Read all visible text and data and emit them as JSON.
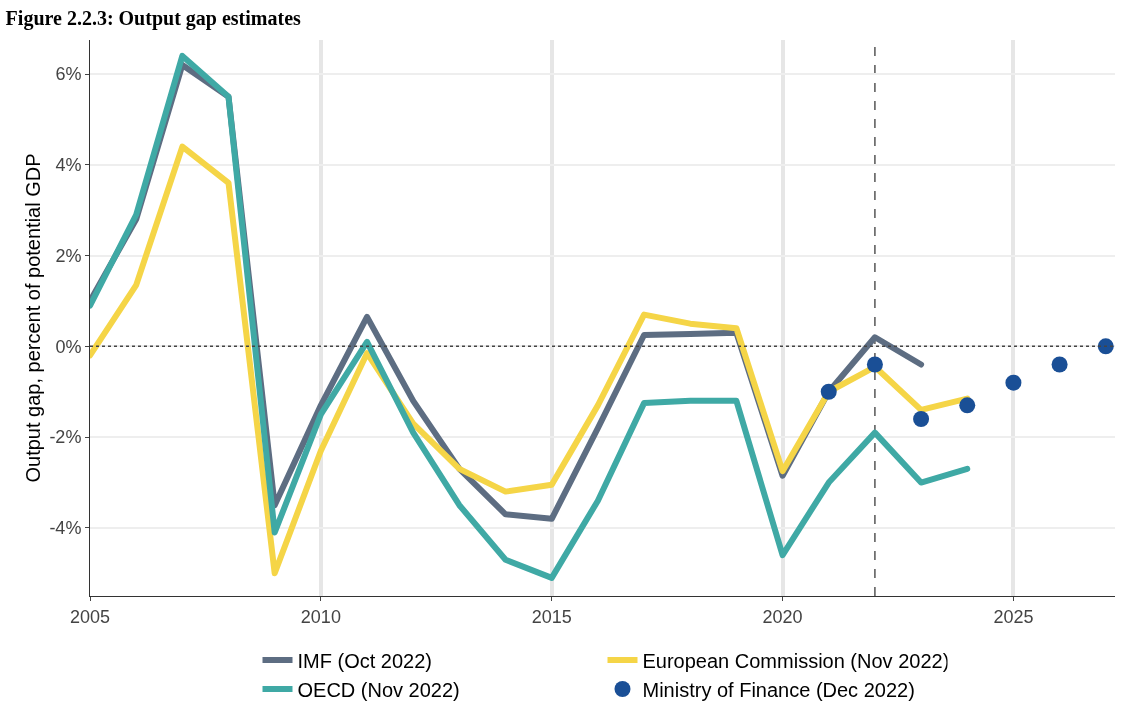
{
  "chart_data": {
    "type": "line",
    "title": "Figure 2.2.3: Output gap estimates",
    "ylabel": "Output gap, percent of potential GDP",
    "x": [
      2005,
      2006,
      2007,
      2008,
      2009,
      2010,
      2011,
      2012,
      2013,
      2014,
      2015,
      2016,
      2017,
      2018,
      2019,
      2020,
      2021,
      2022,
      2023,
      2024
    ],
    "series": [
      {
        "name": "IMF (Oct 2022)",
        "color": "#5d6d82",
        "values": [
          1.0,
          2.8,
          6.2,
          5.5,
          -3.5,
          -1.3,
          0.65,
          -1.2,
          -2.7,
          -3.7,
          -3.8,
          -1.8,
          0.25,
          0.27,
          0.3,
          -2.85,
          -1.0,
          0.2,
          -0.4,
          null
        ]
      },
      {
        "name": "European Commission (Nov 2022)",
        "color": "#f5d547",
        "values": [
          -0.2,
          1.35,
          4.4,
          3.6,
          -5.0,
          -2.3,
          -0.15,
          -1.7,
          -2.7,
          -3.2,
          -3.05,
          -1.3,
          0.7,
          0.5,
          0.4,
          -2.75,
          -1.0,
          -0.45,
          -1.4,
          -1.15
        ]
      },
      {
        "name": "OECD (Nov 2022)",
        "color": "#3fa9a5",
        "values": [
          0.9,
          2.9,
          6.4,
          5.5,
          -4.1,
          -1.5,
          0.1,
          -1.9,
          -3.5,
          -4.7,
          -5.1,
          -3.4,
          -1.25,
          -1.2,
          -1.2,
          -4.6,
          -3.0,
          -1.9,
          -3.0,
          -2.7
        ]
      },
      {
        "name": "Ministry of Finance (Dec 2022)",
        "type": "scatter",
        "marker": "circle",
        "color": "#1a4f96",
        "x": [
          2021,
          2022,
          2023,
          2024,
          2025,
          2026,
          2027
        ],
        "values": [
          -1.0,
          -0.4,
          -1.6,
          -1.3,
          -0.8,
          -0.4,
          0.0
        ]
      }
    ],
    "xlim": [
      2005,
      2027.2
    ],
    "xticks": [
      2005,
      2010,
      2015,
      2020,
      2025
    ],
    "ylim": [
      -5.5,
      6.75
    ],
    "yticks": [
      {
        "value": -4,
        "label": "-4%"
      },
      {
        "value": -2,
        "label": "-2%"
      },
      {
        "value": 0,
        "label": "0%"
      },
      {
        "value": 2,
        "label": "2%"
      },
      {
        "value": 4,
        "label": "4%"
      },
      {
        "value": 6,
        "label": "6%"
      }
    ],
    "ref_lines": [
      {
        "axis": "y",
        "value": 0,
        "line_style": "dotted",
        "color": "#444444"
      },
      {
        "axis": "x",
        "value": 2022,
        "line_style": "dashed",
        "color": "#555555"
      }
    ],
    "grid": true,
    "legend": "bottom",
    "line_style": "solid"
  }
}
